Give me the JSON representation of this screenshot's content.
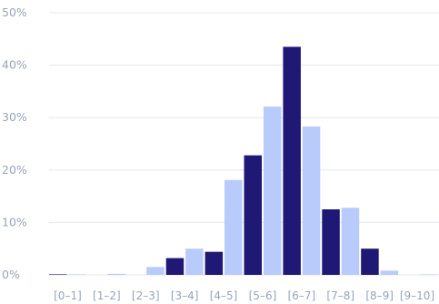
{
  "chart_data": {
    "type": "bar",
    "categories": [
      "[0–1]",
      "[1–2]",
      "[2–3]",
      "[3–4]",
      "[4–5]",
      "[5–6]",
      "[6–7]",
      "[7–8]",
      "[8–9]",
      "[9–10]"
    ],
    "series": [
      {
        "color": "#1f1875",
        "values": [
          0.1,
          0.0,
          0.0,
          3.2,
          4.4,
          22.8,
          43.5,
          12.5,
          5.0,
          0.0
        ]
      },
      {
        "color": "#b8cbfb",
        "values": [
          0.1,
          0.2,
          1.5,
          5.0,
          18.1,
          32.1,
          28.3,
          12.8,
          0.8,
          0.1
        ]
      }
    ],
    "y_ticks": [
      "0%",
      "10%",
      "20%",
      "30%",
      "40%",
      "50%"
    ],
    "ylim": [
      0,
      50
    ],
    "grid": true,
    "legend": "none"
  }
}
